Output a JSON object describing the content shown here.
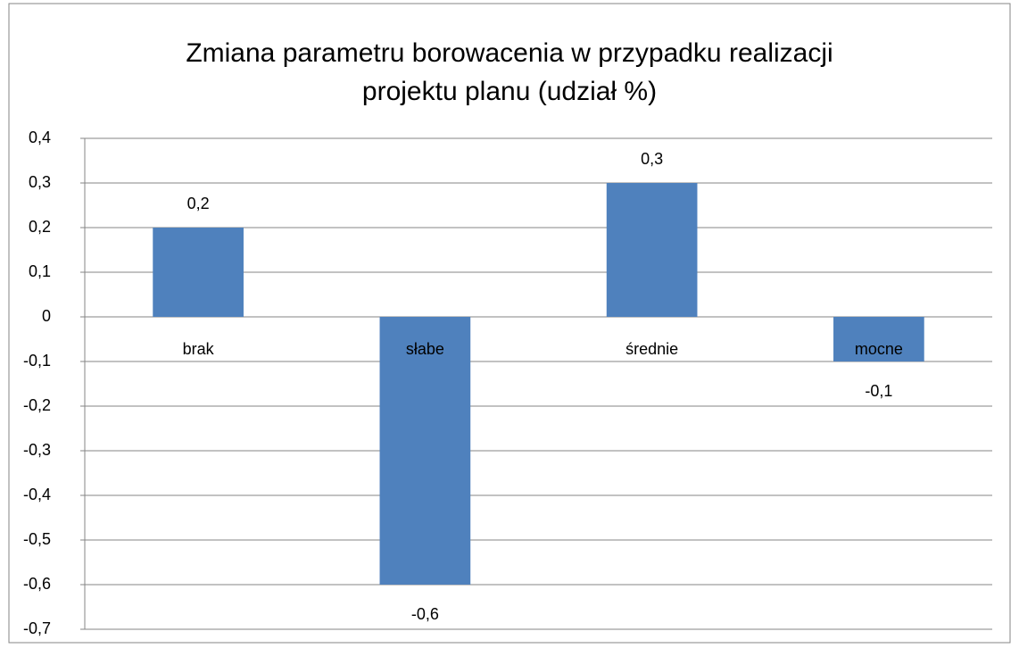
{
  "chart_data": {
    "type": "bar",
    "title": "Zmiana parametru borowacenia w przypadku realizacji projektu planu (udział %)",
    "categories": [
      "brak",
      "słabe",
      "średnie",
      "mocne"
    ],
    "values": [
      0.2,
      -0.6,
      0.3,
      -0.1
    ],
    "value_labels": [
      "0,2",
      "-0,6",
      "0,3",
      "-0,1"
    ],
    "color": "#4f81bd",
    "ylim": [
      -0.7,
      0.4
    ],
    "yticks": [
      {
        "value": -0.7,
        "label": "-0,7"
      },
      {
        "value": -0.6,
        "label": "-0,6"
      },
      {
        "value": -0.5,
        "label": "-0,5"
      },
      {
        "value": -0.4,
        "label": "-0,4"
      },
      {
        "value": -0.3,
        "label": "-0,3"
      },
      {
        "value": -0.2,
        "label": "-0,2"
      },
      {
        "value": -0.1,
        "label": "-0,1"
      },
      0,
      {
        "value": 0.1,
        "label": "0,1"
      },
      {
        "value": 0.2,
        "label": "0,2"
      },
      {
        "value": 0.3,
        "label": "0,3"
      },
      {
        "value": 0.4,
        "label": "0,4"
      }
    ],
    "grid": true
  }
}
